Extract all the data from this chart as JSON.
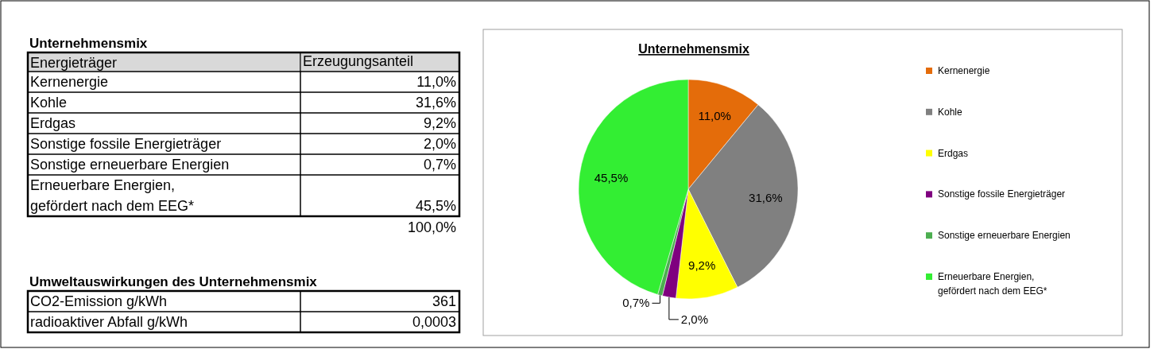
{
  "chart_data": [
    {
      "type": "other",
      "title": "Unternehmensmix",
      "categories": [
        "Kernenergie",
        "Kohle",
        "Erdgas",
        "Sonstige fossile Energieträger",
        "Sonstige erneuerbare Energien",
        "Erneuerbare Energien, gefördert nach dem EEG*"
      ],
      "value_labels": [
        "11,0%",
        "31,6%",
        "9,2%",
        "2,0%",
        "0,7%",
        "45,5%"
      ],
      "annotations": [
        "Energieträger",
        "Erzeugungsanteil",
        "100,0%"
      ]
    },
    {
      "type": "other",
      "title": "Umweltauswirkungen des Unternehmensmix",
      "categories": [
        "CO2-Emission g/kWh",
        "radioaktiver Abfall g/kWh"
      ],
      "value_labels": [
        "361",
        "0,0003"
      ]
    },
    {
      "type": "pie",
      "title": "Unternehmensmix",
      "categories": [
        "Kernenergie",
        "Kohle",
        "Erdgas",
        "Sonstige fossile Energieträger",
        "Sonstige erneuerbare Energien",
        "Erneuerbare Energien, gefördert nach dem EEG*"
      ],
      "values": [
        11.0,
        31.6,
        9.2,
        2.0,
        0.7,
        45.5
      ],
      "value_labels": [
        "11,0%",
        "31,6%",
        "9,2%",
        "2,0%",
        "0,7%",
        "45,5%"
      ],
      "colors": [
        "#e46c0a",
        "#808080",
        "#ffff00",
        "#7f007f",
        "#4cae50",
        "#33ee33"
      ],
      "legend": "right"
    }
  ]
}
